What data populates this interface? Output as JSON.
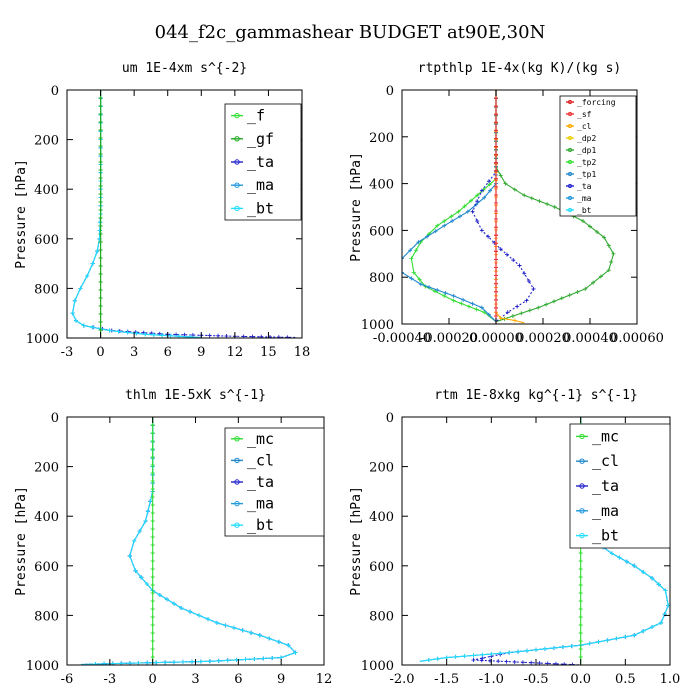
{
  "figure_title": "044_f2c_gammashear  BUDGET at90E,30N",
  "chart_data": [
    {
      "type": "line",
      "title": "um  1E-4xm s^{-2}",
      "ylabel": "Pressure [hPa]",
      "xlim": [
        -3,
        18
      ],
      "ylim": [
        1000,
        0
      ],
      "xticks": [
        "-3",
        "0",
        "3",
        "6",
        "9",
        "12",
        "15",
        "18"
      ],
      "yticks": [
        "0",
        "200",
        "400",
        "600",
        "800",
        "1000"
      ],
      "legend_size": "big",
      "legend": [
        {
          "name": "_f",
          "color": "#33dd33"
        },
        {
          "name": "_gf",
          "color": "#22aa22"
        },
        {
          "name": "_ta",
          "color": "#2222cc"
        },
        {
          "name": "_ma",
          "color": "#2299dd"
        },
        {
          "name": "_bt",
          "color": "#22ddff"
        }
      ],
      "series": [
        {
          "name": "_ta",
          "color": "#2222cc",
          "dashed": true,
          "x": [
            0,
            0,
            -0.1,
            -0.3,
            -0.7,
            -1.2,
            -1.8,
            -2.3,
            -2.5,
            -2.2,
            -1.5,
            1,
            6,
            12,
            17.5
          ],
          "y": [
            0,
            500,
            600,
            650,
            700,
            750,
            800,
            850,
            900,
            930,
            950,
            970,
            985,
            993,
            998
          ]
        },
        {
          "name": "_ma",
          "color": "#2299dd",
          "x": [
            0,
            0,
            -0.1,
            -0.3,
            -0.7,
            -1.2,
            -1.8,
            -2.3,
            -2.5,
            -2.2,
            -1.5,
            0.8,
            4,
            7,
            9
          ],
          "y": [
            0,
            500,
            600,
            650,
            700,
            750,
            800,
            850,
            900,
            930,
            950,
            970,
            985,
            993,
            998
          ]
        },
        {
          "name": "_bt",
          "color": "#22ddff",
          "x": [
            0,
            0,
            -0.1,
            -0.3,
            -0.7,
            -1.2,
            -1.8,
            -2.3,
            -2.5,
            -2.2,
            -1.5,
            0.8,
            4,
            7,
            9
          ],
          "y": [
            0,
            500,
            600,
            650,
            700,
            750,
            800,
            850,
            900,
            930,
            950,
            970,
            985,
            993,
            998
          ]
        },
        {
          "name": "_f",
          "color": "#33dd33",
          "x": [
            0,
            0
          ],
          "y": [
            0,
            1000
          ]
        },
        {
          "name": "_gf",
          "color": "#22aa22",
          "x": [
            0,
            0
          ],
          "y": [
            0,
            1000
          ]
        }
      ]
    },
    {
      "type": "line",
      "title": "rtpthlp  1E-4x(kg K)/(kg s)",
      "ylabel": "Pressure [hPa]",
      "xlim": [
        -0.0004,
        0.0006
      ],
      "ylim": [
        1000,
        0
      ],
      "xticks": [
        "-0.00040",
        "-0.00020",
        "0.00000",
        "0.00020",
        "0.00040",
        "0.00060"
      ],
      "yticks": [
        "0",
        "200",
        "400",
        "600",
        "800",
        "1000"
      ],
      "legend_size": "small",
      "legend": [
        {
          "name": "_forcing",
          "color": "#dd2222"
        },
        {
          "name": "_sf",
          "color": "#ee3333"
        },
        {
          "name": "_cl",
          "color": "#ffaa00"
        },
        {
          "name": "_dp2",
          "color": "#eecc00"
        },
        {
          "name": "_dp1",
          "color": "#33aa33"
        },
        {
          "name": "_tp2",
          "color": "#33dd33"
        },
        {
          "name": "_tp1",
          "color": "#2288cc"
        },
        {
          "name": "_ta",
          "color": "#2222cc"
        },
        {
          "name": "_ma",
          "color": "#2299dd"
        },
        {
          "name": "_bt",
          "color": "#22ddff"
        }
      ],
      "series": [
        {
          "name": "_dp1",
          "color": "#33aa33",
          "x": [
            0,
            0,
            4e-05,
            0.00012,
            0.00025,
            0.00037,
            0.00046,
            0.0005,
            0.00048,
            0.00038,
            0.00018,
            0
          ],
          "y": [
            0,
            330,
            400,
            450,
            500,
            560,
            630,
            700,
            770,
            850,
            930,
            990
          ]
        },
        {
          "name": "_tp2",
          "color": "#33dd33",
          "x": [
            0,
            0,
            -8e-05,
            -0.00016,
            -0.00025,
            -0.00032,
            -0.00036,
            -0.00035,
            -0.0003,
            -0.00018,
            -5e-05,
            0
          ],
          "y": [
            0,
            380,
            450,
            520,
            580,
            650,
            720,
            780,
            840,
            900,
            950,
            990
          ]
        },
        {
          "name": "_tp1",
          "color": "#2288cc",
          "x": [
            0,
            0,
            -5e-05,
            -0.00012,
            -0.00022,
            -0.00033,
            -0.0004,
            -0.0004,
            -0.00032,
            -0.00018,
            -6e-05,
            0
          ],
          "y": [
            0,
            400,
            460,
            520,
            580,
            650,
            720,
            780,
            830,
            880,
            930,
            990
          ]
        },
        {
          "name": "_ta",
          "color": "#2222cc",
          "dashed": true,
          "x": [
            0,
            0,
            -6e-05,
            -0.0001,
            -6e-05,
            2e-05,
            0.0001,
            0.00016,
            0.00013,
            5e-05,
            0
          ],
          "y": [
            0,
            350,
            430,
            520,
            600,
            680,
            750,
            850,
            900,
            950,
            990
          ]
        },
        {
          "name": "_cl",
          "color": "#ffaa00",
          "x": [
            0,
            0,
            2e-05,
            8e-05,
            0.00012
          ],
          "y": [
            0,
            950,
            975,
            985,
            995
          ]
        },
        {
          "name": "_forcing",
          "color": "#dd2222",
          "x": [
            0,
            0
          ],
          "y": [
            0,
            1000
          ]
        },
        {
          "name": "_sf",
          "color": "#ee3333",
          "x": [
            0,
            0
          ],
          "y": [
            0,
            1000
          ]
        }
      ]
    },
    {
      "type": "line",
      "title": "thlm  1E-5xK s^{-1}",
      "ylabel": "Pressure [hPa]",
      "xlim": [
        -6,
        12
      ],
      "ylim": [
        1000,
        0
      ],
      "xticks": [
        "-6",
        "-3",
        "0",
        "3",
        "6",
        "9",
        "12"
      ],
      "yticks": [
        "0",
        "200",
        "400",
        "600",
        "800",
        "1000"
      ],
      "legend_size": "big",
      "legend": [
        {
          "name": "_mc",
          "color": "#33dd33"
        },
        {
          "name": "_cl",
          "color": "#2288cc"
        },
        {
          "name": "_ta",
          "color": "#2222cc"
        },
        {
          "name": "_ma",
          "color": "#2299dd"
        },
        {
          "name": "_bt",
          "color": "#22ddff"
        }
      ],
      "series": [
        {
          "name": "_cl",
          "color": "#2288cc",
          "x": [
            0,
            0,
            -0.5,
            -1.3,
            -1.6,
            -1.2,
            0,
            2,
            4.5,
            7.5,
            9.5,
            10,
            9,
            4,
            -1,
            -4,
            -5
          ],
          "y": [
            0,
            300,
            420,
            500,
            560,
            620,
            700,
            770,
            830,
            880,
            920,
            950,
            970,
            985,
            992,
            996,
            998
          ]
        },
        {
          "name": "_ta",
          "color": "#2222cc",
          "dashed": true,
          "x": [
            0,
            0,
            -0.5,
            -1.3,
            -1.6,
            -1.2,
            0,
            2,
            4.5,
            7.5,
            9.5,
            10,
            9,
            4,
            -1,
            -4,
            -5
          ],
          "y": [
            0,
            300,
            420,
            500,
            560,
            620,
            700,
            770,
            830,
            880,
            920,
            950,
            970,
            985,
            992,
            996,
            998
          ]
        },
        {
          "name": "_bt",
          "color": "#22ddff",
          "x": [
            0,
            0,
            -0.5,
            -1.3,
            -1.6,
            -1.2,
            0,
            2,
            4.5,
            7.5,
            9.5,
            10,
            9,
            4,
            -1,
            -4,
            -5
          ],
          "y": [
            0,
            300,
            420,
            500,
            560,
            620,
            700,
            770,
            830,
            880,
            920,
            950,
            970,
            985,
            992,
            996,
            998
          ]
        },
        {
          "name": "_mc",
          "color": "#33dd33",
          "x": [
            0,
            0
          ],
          "y": [
            0,
            1000
          ]
        }
      ]
    },
    {
      "type": "line",
      "title": "rtm  1E-8xkg kg^{-1} s^{-1}",
      "ylabel": "Pressure [hPa]",
      "xlim": [
        -2,
        1
      ],
      "ylim": [
        1000,
        0
      ],
      "xticks": [
        "-2.0",
        "-1.5",
        "-1.0",
        "-0.5",
        "0.0",
        "0.5",
        "1.0"
      ],
      "yticks": [
        "0",
        "200",
        "400",
        "600",
        "800",
        "1000"
      ],
      "legend_size": "big",
      "legend": [
        {
          "name": "_mc",
          "color": "#33dd33"
        },
        {
          "name": "_cl",
          "color": "#2288cc"
        },
        {
          "name": "_ta",
          "color": "#2222cc"
        },
        {
          "name": "_ma",
          "color": "#2299dd"
        },
        {
          "name": "_bt",
          "color": "#22ddff"
        }
      ],
      "series": [
        {
          "name": "_cl",
          "color": "#2288cc",
          "x": [
            0,
            0,
            0.03,
            0.03,
            0.05,
            0.15,
            0.35,
            0.6,
            0.8,
            0.95,
            0.98,
            0.9,
            0.6,
            0,
            -0.8,
            -1.5,
            -1.8
          ],
          "y": [
            0,
            100,
            200,
            350,
            450,
            500,
            550,
            600,
            650,
            700,
            760,
            830,
            880,
            920,
            950,
            970,
            985
          ]
        },
        {
          "name": "_ta",
          "color": "#2222cc",
          "dashed": true,
          "x": [
            0,
            0,
            0.03,
            0.03,
            0.05,
            0.15,
            0.35,
            0.6,
            0.8,
            0.95,
            0.98,
            0.9,
            0.6,
            0,
            -0.8,
            -1.2,
            0
          ],
          "y": [
            0,
            100,
            200,
            350,
            450,
            500,
            550,
            600,
            650,
            700,
            760,
            830,
            880,
            920,
            950,
            980,
            1000
          ]
        },
        {
          "name": "_bt",
          "color": "#22ddff",
          "x": [
            0,
            0,
            0.03,
            0.03,
            0.05,
            0.15,
            0.35,
            0.6,
            0.8,
            0.95,
            0.98,
            0.9,
            0.6,
            0,
            -0.8,
            -1.5,
            -1.8
          ],
          "y": [
            0,
            100,
            200,
            350,
            450,
            500,
            550,
            600,
            650,
            700,
            760,
            830,
            880,
            920,
            950,
            970,
            985
          ]
        },
        {
          "name": "_mc",
          "color": "#33dd33",
          "x": [
            0,
            0
          ],
          "y": [
            0,
            1000
          ]
        }
      ]
    }
  ]
}
